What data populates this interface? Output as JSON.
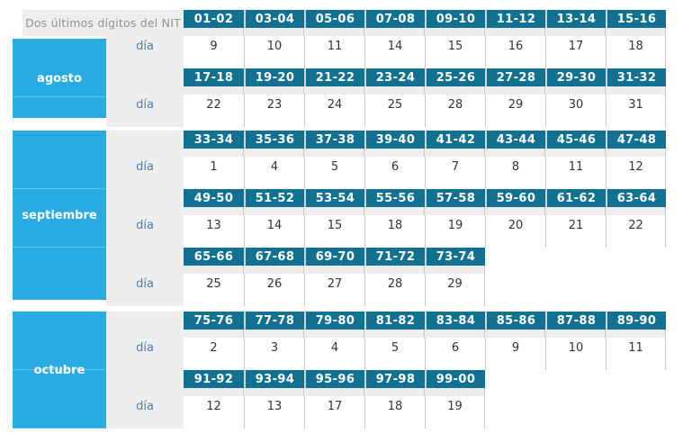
{
  "table": {
    "title": "Dos últimos dígitos del NIT",
    "day_label": "día",
    "months": [
      {
        "name": "agosto",
        "bands": [
          {
            "nit": [
              "01-02",
              "03-04",
              "05-06",
              "07-08",
              "09-10",
              "11-12",
              "13-14",
              "15-16"
            ],
            "days": [
              "9",
              "10",
              "11",
              "14",
              "15",
              "16",
              "17",
              "18"
            ]
          },
          {
            "nit": [
              "17-18",
              "19-20",
              "21-22",
              "23-24",
              "25-26",
              "27-28",
              "29-30",
              "31-32"
            ],
            "days": [
              "22",
              "23",
              "24",
              "25",
              "28",
              "29",
              "30",
              "31"
            ]
          }
        ]
      },
      {
        "name": "septiembre",
        "bands": [
          {
            "nit": [
              "33-34",
              "35-36",
              "37-38",
              "39-40",
              "41-42",
              "43-44",
              "45-46",
              "47-48"
            ],
            "days": [
              "1",
              "4",
              "5",
              "6",
              "7",
              "8",
              "11",
              "12"
            ]
          },
          {
            "nit": [
              "49-50",
              "51-52",
              "53-54",
              "55-56",
              "57-58",
              "59-60",
              "61-62",
              "63-64"
            ],
            "days": [
              "13",
              "14",
              "15",
              "18",
              "19",
              "20",
              "21",
              "22"
            ]
          },
          {
            "nit": [
              "65-66",
              "67-68",
              "69-70",
              "71-72",
              "73-74"
            ],
            "days": [
              "25",
              "26",
              "27",
              "28",
              "29"
            ]
          }
        ]
      },
      {
        "name": "octubre",
        "bands": [
          {
            "nit": [
              "75-76",
              "77-78",
              "79-80",
              "81-82",
              "83-84",
              "85-86",
              "87-88",
              "89-90"
            ],
            "days": [
              "2",
              "3",
              "4",
              "5",
              "6",
              "9",
              "10",
              "11"
            ]
          },
          {
            "nit": [
              "91-92",
              "93-94",
              "95-96",
              "97-98",
              "99-00"
            ],
            "days": [
              "12",
              "13",
              "17",
              "18",
              "19"
            ]
          }
        ]
      }
    ]
  },
  "colors": {
    "teal_header": "#127191",
    "month_blue": "#29ABE2",
    "row_gray": "#EEEEEF",
    "grid_line": "#C8CBCD",
    "day_label_blue": "#4E7EA6",
    "title_gray": "#8F9193",
    "day_text": "#333333"
  }
}
